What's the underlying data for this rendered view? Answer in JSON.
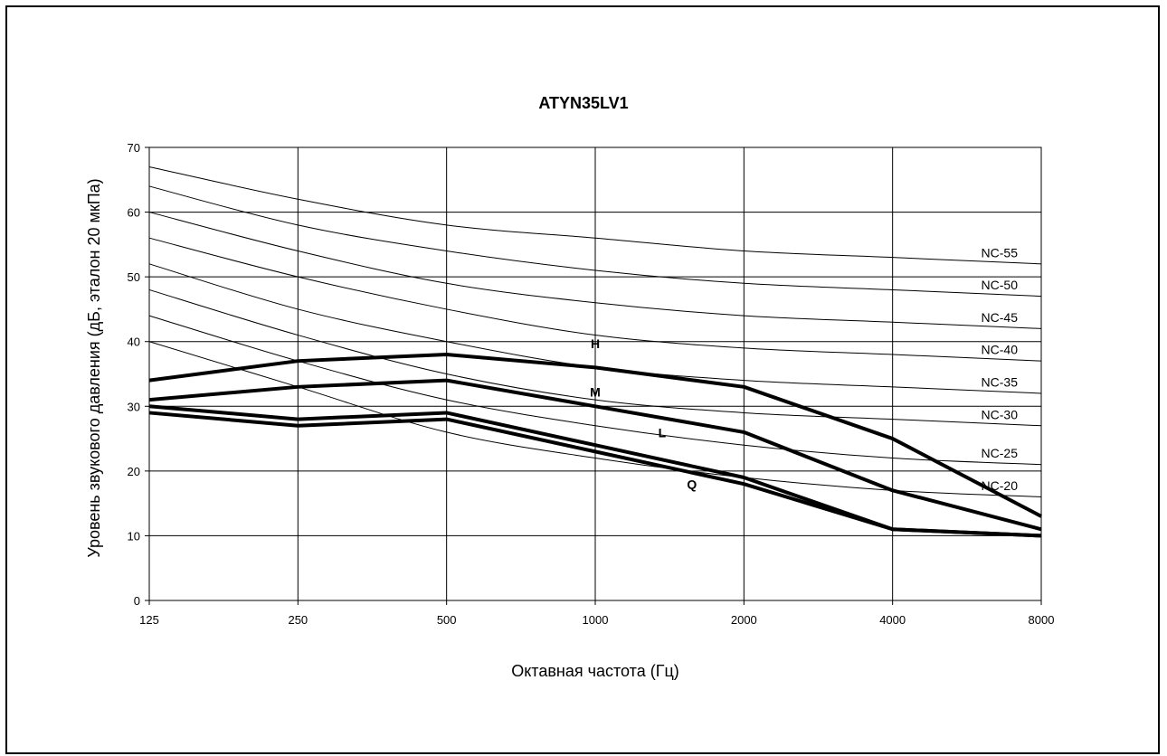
{
  "chart_data": {
    "type": "line",
    "title": "ATYN35LV1",
    "xlabel": "Октавная частота (Гц)",
    "ylabel": "Уровень звукового давления (дБ, эталон 20 мкПа)",
    "x": [
      "125",
      "250",
      "500",
      "1000",
      "2000",
      "4000",
      "8000"
    ],
    "x_scale": "log2 octave bands",
    "ylim": [
      0,
      70
    ],
    "yticks": [
      "0",
      "10",
      "20",
      "30",
      "40",
      "50",
      "60",
      "70"
    ],
    "grid": true,
    "nc_curves": [
      {
        "name": "NC-55",
        "values": [
          67,
          62,
          58,
          56,
          54,
          53,
          52
        ]
      },
      {
        "name": "NC-50",
        "values": [
          64,
          58,
          54,
          51,
          49,
          48,
          47
        ]
      },
      {
        "name": "NC-45",
        "values": [
          60,
          54,
          49,
          46,
          44,
          43,
          42
        ]
      },
      {
        "name": "NC-40",
        "values": [
          56,
          50,
          45,
          41,
          39,
          38,
          37
        ]
      },
      {
        "name": "NC-35",
        "values": [
          52,
          45,
          40,
          36,
          34,
          33,
          32
        ]
      },
      {
        "name": "NC-30",
        "values": [
          48,
          41,
          35,
          31,
          29,
          28,
          27
        ]
      },
      {
        "name": "NC-25",
        "values": [
          44,
          37,
          31,
          27,
          24,
          22,
          21
        ]
      },
      {
        "name": "NC-20",
        "values": [
          40,
          33,
          26,
          22,
          19,
          17,
          16
        ]
      }
    ],
    "series": [
      {
        "name": "H",
        "values": [
          34,
          37,
          38,
          36,
          33,
          25,
          13
        ]
      },
      {
        "name": "M",
        "values": [
          31,
          33,
          34,
          30,
          26,
          17,
          11
        ]
      },
      {
        "name": "L",
        "values": [
          30,
          28,
          29,
          24,
          19,
          11,
          10
        ]
      },
      {
        "name": "Q",
        "values": [
          29,
          27,
          28,
          23,
          18,
          11,
          10
        ]
      }
    ]
  }
}
